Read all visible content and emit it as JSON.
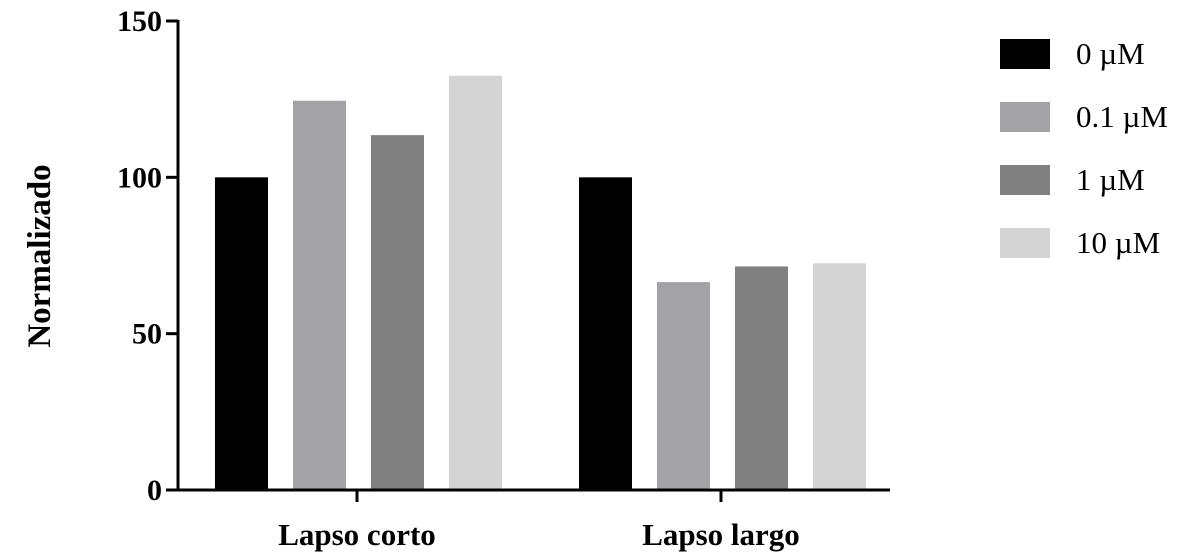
{
  "chart_data": {
    "type": "bar",
    "title": "",
    "xlabel": "",
    "ylabel": "Normalizado",
    "categories": [
      "Lapso corto",
      "Lapso largo"
    ],
    "series": [
      {
        "name": "0 µM",
        "values": [
          100,
          100
        ],
        "color": "#000000"
      },
      {
        "name": "0.1 µM",
        "values": [
          124.5,
          66.5
        ],
        "color": "#a3a3a7"
      },
      {
        "name": "1 µM",
        "values": [
          113.5,
          71.5
        ],
        "color": "#808080"
      },
      {
        "name": "10 µM",
        "values": [
          132.5,
          72.5
        ],
        "color": "#d4d4d4"
      }
    ],
    "ylim": [
      0,
      150
    ],
    "yticks": [
      0,
      50,
      100,
      150
    ],
    "grid": false,
    "legend_position": "right"
  }
}
